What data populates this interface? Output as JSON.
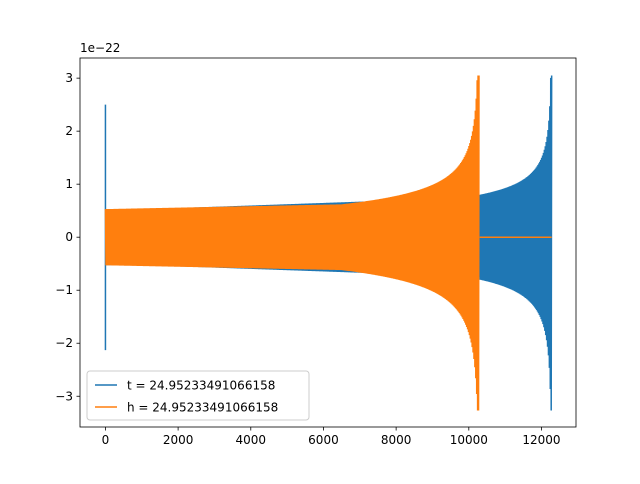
{
  "chart_data": {
    "type": "line",
    "title": "",
    "xlabel": "",
    "ylabel": "",
    "y_offset_label": "1e−22",
    "xlim": [
      -700,
      12950
    ],
    "ylim": [
      -3.58,
      3.38
    ],
    "x_ticks": [
      0,
      2000,
      4000,
      6000,
      8000,
      10000,
      12000
    ],
    "x_tick_labels": [
      "0",
      "2000",
      "4000",
      "6000",
      "8000",
      "10000",
      "12000"
    ],
    "y_ticks": [
      -3,
      -2,
      -1,
      0,
      1,
      2,
      3
    ],
    "y_tick_labels": [
      "−3",
      "−2",
      "−1",
      "0",
      "1",
      "2",
      "3"
    ],
    "grid": false,
    "legend_position": "lower-left",
    "series": [
      {
        "name": "t = 24.95233491066158",
        "color": "#1f77b4",
        "segments": [
          {
            "kind": "spike",
            "x": 0,
            "min": -2.13,
            "max": 2.5
          },
          {
            "kind": "oscillation",
            "x_start": 0,
            "x_end": 2000,
            "amp_start": 0.53,
            "amp_end": 0.53
          },
          {
            "kind": "oscillation",
            "x_start": 2000,
            "x_end": 10300,
            "amp_start": 0.55,
            "amp_end": 0.75
          },
          {
            "kind": "chirp",
            "x_start": 10300,
            "x_end": 12280,
            "amp_start": 0.8,
            "amp_end": 3.05,
            "amp_min": -3.27
          }
        ]
      },
      {
        "name": "h = 24.95233491066158",
        "color": "#ff7f0e",
        "segments": [
          {
            "kind": "oscillation",
            "x_start": 0,
            "x_end": 6500,
            "amp_start": 0.53,
            "amp_end": 0.62
          },
          {
            "kind": "chirp",
            "x_start": 6500,
            "x_end": 10280,
            "amp_start": 0.62,
            "amp_end": 3.05,
            "amp_min": -3.27
          },
          {
            "kind": "flat",
            "x_start": 10300,
            "x_end": 12280,
            "value": 0
          }
        ]
      }
    ]
  }
}
